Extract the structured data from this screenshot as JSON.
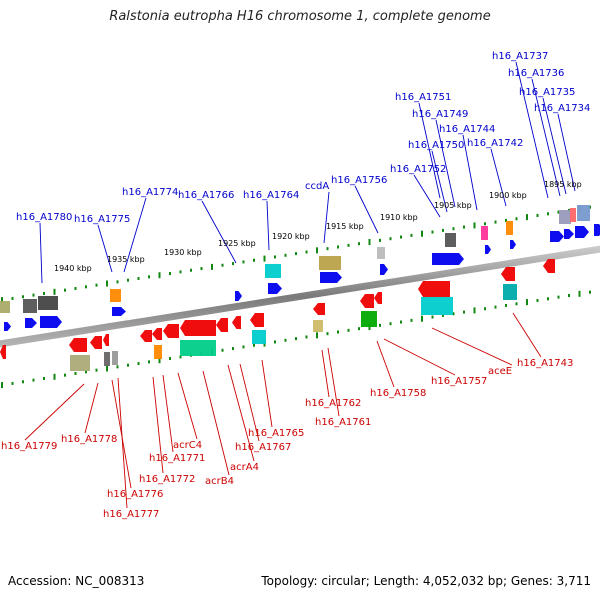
{
  "title": "Ralstonia eutropha H16 chromosome 1, complete genome",
  "footer": {
    "accession": "Accession: NC_008313",
    "topology": "Topology: circular; Length: 4,052,032 bp; Genes: 3,711"
  },
  "scale_ticks": [
    "1940 kbp",
    "1935 kbp",
    "1930 kbp",
    "1925 kbp",
    "1920 kbp",
    "1915 kbp",
    "1910 kbp",
    "1905 kbp",
    "1900 kbp",
    "1895 kbp"
  ],
  "upper_labels": [
    "h16_A1780",
    "h16_A1775",
    "h16_A1774",
    "h16_A1766",
    "h16_A1764",
    "ccdA",
    "h16_A1756",
    "h16_A1752",
    "h16_A1750",
    "h16_A1749",
    "h16_A1751",
    "h16_A1744",
    "h16_A1742",
    "h16_A1737",
    "h16_A1736",
    "h16_A1735",
    "h16_A1734"
  ],
  "lower_labels": [
    "h16_A1779",
    "h16_A1778",
    "h16_A1776",
    "h16_A1777",
    "h16_A1772",
    "h16_A1771",
    "acrC4",
    "acrB4",
    "acrA4",
    "h16_A1767",
    "h16_A1765",
    "h16_A1762",
    "h16_A1761",
    "h16_A1758",
    "h16_A1757",
    "aceE",
    "h16_A1743"
  ],
  "colors": {
    "upper_label": "#0000cc",
    "lower_label": "#cc0000",
    "forward_gene": "#0000ee",
    "reverse_gene": "#ee0000",
    "backbone": "#808080",
    "tick": "#118811"
  }
}
